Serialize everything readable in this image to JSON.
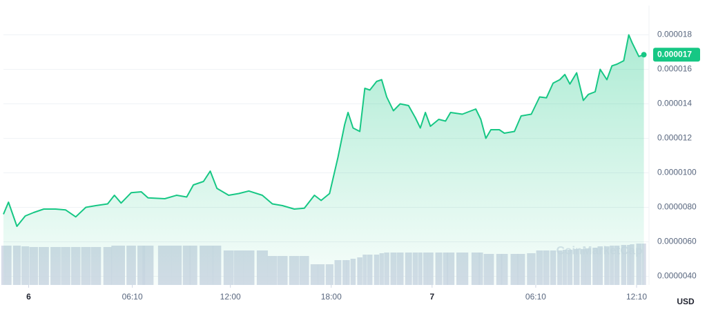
{
  "chart_data": {
    "type": "line",
    "x": [
      -1.5,
      -1.2,
      -0.7,
      -0.2,
      0.3,
      0.9,
      1.6,
      2.2,
      2.8,
      3.4,
      4.0,
      4.7,
      5.1,
      5.5,
      6.1,
      6.7,
      7.1,
      8.1,
      8.8,
      9.4,
      9.8,
      10.4,
      10.8,
      11.2,
      11.9,
      12.5,
      13.1,
      13.9,
      14.5,
      15.1,
      15.8,
      16.4,
      17.0,
      17.4,
      17.9,
      18.4,
      18.8,
      19.0,
      19.3,
      19.7,
      20.0,
      20.3,
      20.7,
      21.0,
      21.3,
      21.7,
      22.1,
      22.6,
      23.0,
      23.3,
      23.6,
      23.9,
      24.4,
      24.8,
      25.1,
      25.8,
      26.6,
      26.9,
      27.2,
      27.5,
      28.0,
      28.3,
      28.9,
      29.3,
      29.9,
      30.4,
      30.8,
      31.2,
      31.6,
      31.9,
      32.2,
      32.6,
      33.0,
      33.3,
      33.7,
      34.0,
      34.4,
      34.7,
      35.0,
      35.4,
      35.7,
      35.9,
      36.3,
      36.6
    ],
    "series": [
      {
        "name": "Price",
        "color": "#16c784",
        "values": [
          7.6e-06,
          8.3e-06,
          6.9e-06,
          7.5e-06,
          7.7e-06,
          7.9e-06,
          7.9e-06,
          7.85e-06,
          7.45e-06,
          8e-06,
          8.1e-06,
          8.2e-06,
          8.7e-06,
          8.25e-06,
          8.85e-06,
          8.9e-06,
          8.55e-06,
          8.5e-06,
          8.7e-06,
          8.6e-06,
          9.3e-06,
          9.5e-06,
          1.01e-05,
          9.1e-06,
          8.7e-06,
          8.8e-06,
          8.95e-06,
          8.7e-06,
          8.2e-06,
          8.1e-06,
          7.9e-06,
          7.95e-06,
          8.7e-06,
          8.4e-06,
          8.8e-06,
          1.09e-05,
          1.28e-05,
          1.35e-05,
          1.26e-05,
          1.24e-05,
          1.49e-05,
          1.48e-05,
          1.53e-05,
          1.54e-05,
          1.44e-05,
          1.36e-05,
          1.4e-05,
          1.39e-05,
          1.32e-05,
          1.26e-05,
          1.35e-05,
          1.27e-05,
          1.31e-05,
          1.3e-05,
          1.35e-05,
          1.34e-05,
          1.37e-05,
          1.31e-05,
          1.2e-05,
          1.25e-05,
          1.25e-05,
          1.23e-05,
          1.24e-05,
          1.33e-05,
          1.34e-05,
          1.44e-05,
          1.435e-05,
          1.52e-05,
          1.54e-05,
          1.57e-05,
          1.515e-05,
          1.58e-05,
          1.42e-05,
          1.455e-05,
          1.47e-05,
          1.6e-05,
          1.54e-05,
          1.62e-05,
          1.63e-05,
          1.65e-05,
          1.8e-05,
          1.755e-05,
          1.675e-05,
          1.685e-05
        ]
      },
      {
        "name": "Volume",
        "color": "#cfd6e4",
        "axis": "y2",
        "values": [
          57,
          57,
          57,
          56,
          55,
          55,
          55,
          55,
          55,
          55,
          55,
          55,
          57,
          57,
          57,
          57,
          57,
          57,
          57,
          57,
          57,
          57,
          57,
          57,
          50,
          50,
          50,
          50,
          42,
          42,
          42,
          42,
          30,
          30,
          30,
          36,
          36,
          36,
          38,
          40,
          44,
          44,
          44,
          46,
          47,
          47,
          47,
          47,
          47,
          47,
          47,
          47,
          47,
          47,
          47,
          47,
          47,
          47,
          45,
          45,
          45,
          45,
          45,
          45,
          46,
          50,
          50,
          50,
          50,
          51,
          51,
          52,
          52,
          53,
          54,
          56,
          56,
          57,
          57,
          58,
          58,
          59,
          60,
          60
        ]
      }
    ],
    "xlim": [
      -1.5,
      36.7
    ],
    "xticks": [
      {
        "value": 0,
        "label": "6"
      },
      {
        "value": 6.1667,
        "label": "06:10"
      },
      {
        "value": 12,
        "label": "12:00"
      },
      {
        "value": 18,
        "label": "18:00"
      },
      {
        "value": 24,
        "label": "7"
      },
      {
        "value": 30.1667,
        "label": "06:10"
      },
      {
        "value": 36.1667,
        "label": "12:10"
      }
    ],
    "ylim": [
      3.5e-06,
      1.97e-05
    ],
    "yticks": [
      {
        "value": 4e-06,
        "label": "0.0000040"
      },
      {
        "value": 6e-06,
        "label": "0.0000060"
      },
      {
        "value": 8e-06,
        "label": "0.0000080"
      },
      {
        "value": 1e-05,
        "label": "0.0000100"
      },
      {
        "value": 1.2e-05,
        "label": "0.000012"
      },
      {
        "value": 1.4e-05,
        "label": "0.000014"
      },
      {
        "value": 1.6e-05,
        "label": "0.000016"
      },
      {
        "value": 1.8e-05,
        "label": "0.000018"
      }
    ],
    "y2lim": [
      0,
      100
    ],
    "price_tag": "0.000017",
    "currency": "USD",
    "watermark": "CoinMarketCap",
    "grid": true
  }
}
